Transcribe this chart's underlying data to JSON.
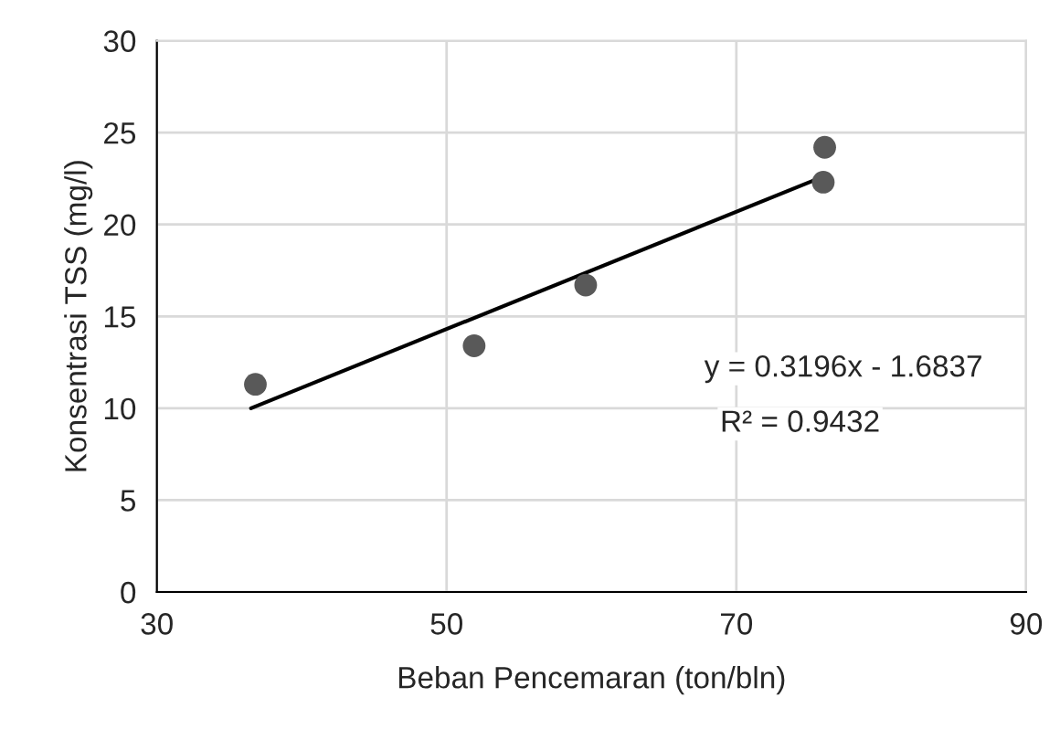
{
  "chart_data": {
    "type": "scatter",
    "xlabel": "Beban Pencemaran (ton/bln)",
    "ylabel": "Konsentrasi TSS (mg/l)",
    "xlim": [
      30,
      90
    ],
    "xticks": [
      30,
      50,
      70,
      90
    ],
    "ylim": [
      0,
      30
    ],
    "yticks": [
      0,
      5,
      10,
      15,
      20,
      25,
      30
    ],
    "grid": true,
    "series": [
      {
        "marker": "circle",
        "color": "#595959",
        "x": [
          36.8,
          51.9,
          59.6,
          76.1,
          76.0
        ],
        "values": [
          11.3,
          13.4,
          16.7,
          24.2,
          22.3
        ]
      },
      {
        "type": "line",
        "marker": "none",
        "color": "#000000",
        "x": [
          36.5,
          76.3
        ],
        "values": [
          10.0,
          22.7
        ]
      }
    ],
    "annotations": [
      "y = 0.3196x - 1.6837",
      "R² = 0.9432"
    ]
  }
}
